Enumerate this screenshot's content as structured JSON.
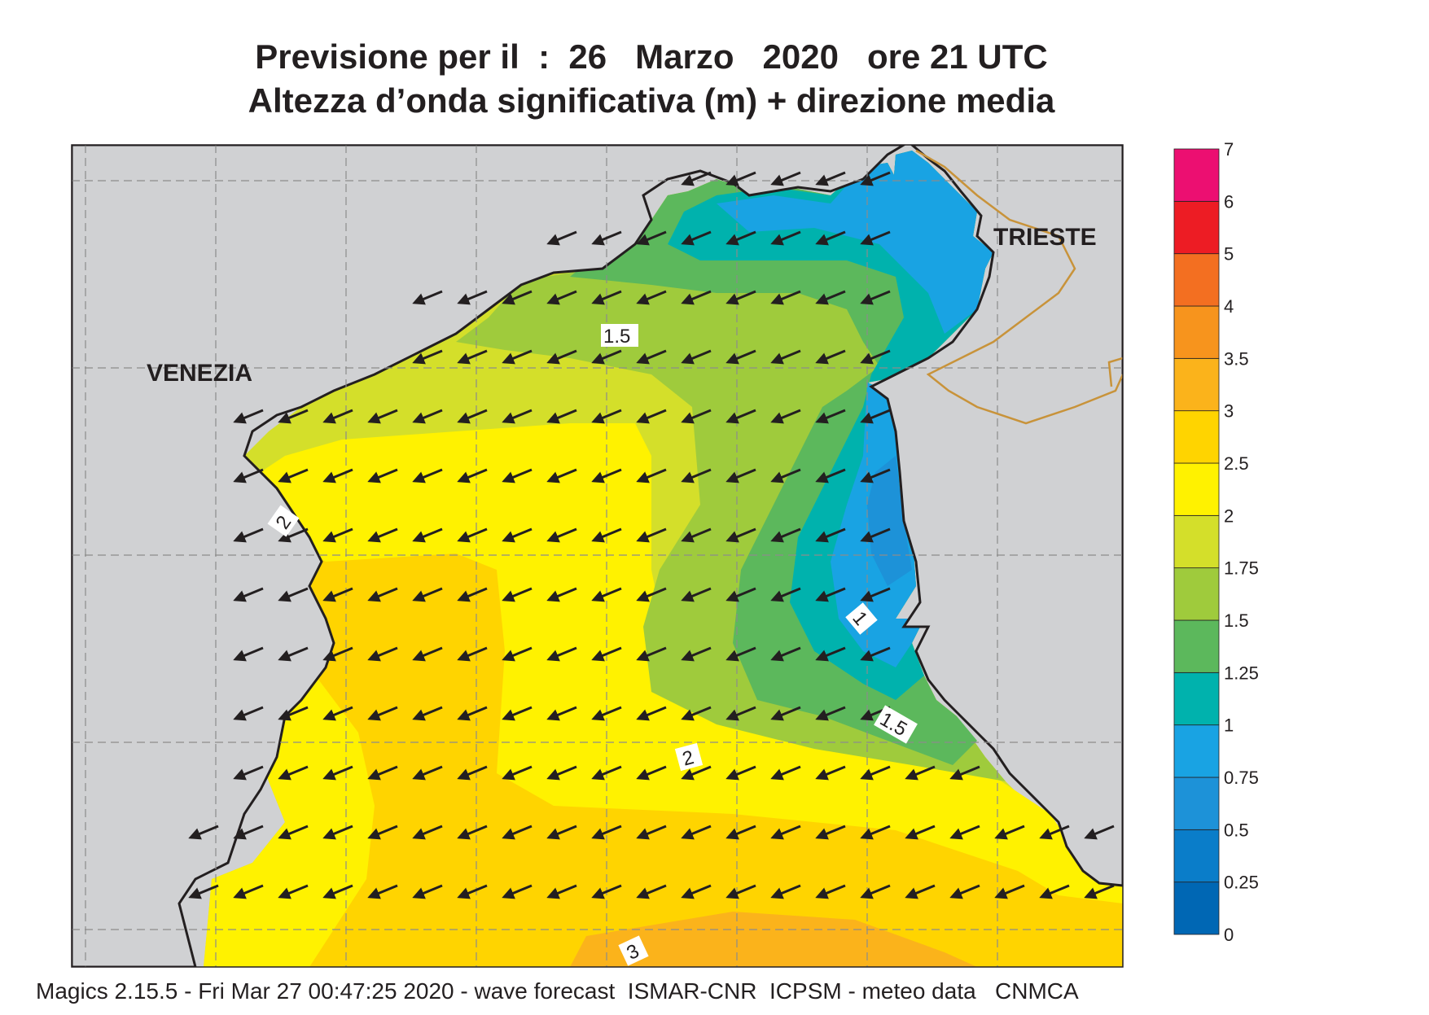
{
  "header": {
    "title_line1": "Previsione per il  :  26   Marzo   2020   ore 21 UTC",
    "title_line2": "Altezza d’onda significativa (m) + direzione media"
  },
  "footer": {
    "text": "Magics 2.15.5 - Fri Mar 27 00:47:25 2020 - wave forecast  ISMAR-CNR  ICPSM - meteo data   CNMCA"
  },
  "map": {
    "cities": [
      {
        "name": "VENEZIA"
      },
      {
        "name": "TRIESTE"
      }
    ],
    "contour_labels": [
      "1.5",
      "2",
      "1",
      "1.5",
      "2",
      "3"
    ],
    "wave_direction": "from east-northeast (arrows point west-southwest)",
    "colors": {
      "land": "#d0d1d3",
      "coast": "#231f20",
      "border": "#c8933a",
      "grid": "#8c8c8c"
    }
  },
  "legend": {
    "levels": [
      "0",
      "0.25",
      "0.5",
      "0.75",
      "1",
      "1.25",
      "1.5",
      "1.75",
      "2",
      "2.5",
      "3",
      "3.5",
      "4",
      "5",
      "6",
      "7"
    ],
    "colors": [
      "#0067b4",
      "#0a7dc9",
      "#1d92d8",
      "#19a3e3",
      "#00b2ad",
      "#5cb85c",
      "#9fcb3c",
      "#d4df2a",
      "#fff200",
      "#ffd400",
      "#fbb31b",
      "#f7941d",
      "#f36f21",
      "#ed1c24",
      "#ec0f71"
    ]
  }
}
